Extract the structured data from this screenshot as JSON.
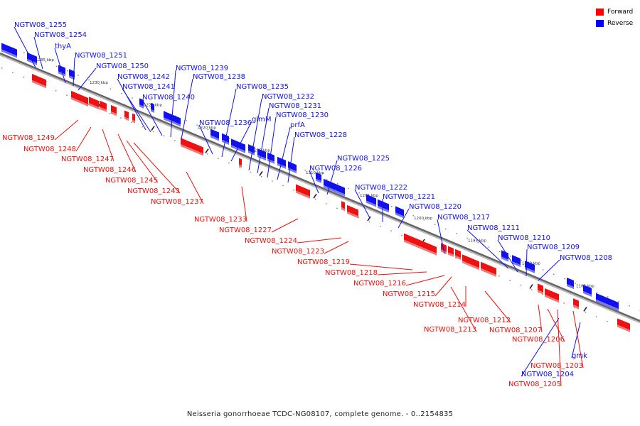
{
  "legend": {
    "items": [
      {
        "label": "Forward",
        "color": "#ff0000"
      },
      {
        "label": "Reverse",
        "color": "#0000ff"
      }
    ]
  },
  "caption": "Neisseria gonorrhoeae TCDC-NG08107, complete genome. - 0..2154835",
  "colors": {
    "forward": "#ee1111",
    "reverse": "#1111ee",
    "axis": "#666666"
  },
  "ticks": [
    {
      "label": "1235 kbp",
      "kbp": 1235
    },
    {
      "label": "1230 kbp",
      "kbp": 1230
    },
    {
      "label": "1225 kbp",
      "kbp": 1225
    },
    {
      "label": "1220 kbp",
      "kbp": 1220
    },
    {
      "label": "1215 kbp",
      "kbp": 1215
    },
    {
      "label": "1210 kbp",
      "kbp": 1210
    },
    {
      "label": "1205 kbp",
      "kbp": 1205
    },
    {
      "label": "1200 kbp",
      "kbp": 1200
    },
    {
      "label": "1195 kbp",
      "kbp": 1195
    },
    {
      "label": "1190 kbp",
      "kbp": 1190
    },
    {
      "label": "1185 kbp",
      "kbp": 1185
    }
  ],
  "reverse_genes": [
    "NGTW08_1255",
    "NGTW08_1254",
    "thyA",
    "NGTW08_1251",
    "NGTW08_1250",
    "NGTW08_1242",
    "NGTW08_1241",
    "NGTW08_1240",
    "NGTW08_1239",
    "NGTW08_1238",
    "NGTW08_1236",
    "NGTW08_1235",
    "glmM",
    "NGTW08_1232",
    "NGTW08_1231",
    "NGTW08_1230",
    "prfA",
    "NGTW08_1228",
    "NGTW08_1226",
    "NGTW08_1225",
    "NGTW08_1222",
    "NGTW08_1221",
    "NGTW08_1220",
    "NGTW08_1217",
    "NGTW08_1211",
    "NGTW08_1210",
    "NGTW08_1209",
    "NGTW08_1208",
    "gmk",
    "NGTW08_1204"
  ],
  "forward_genes": [
    "NGTW08_1249",
    "NGTW08_1248",
    "NGTW08_1247",
    "NGTW08_1246",
    "NGTW08_1245",
    "NGTW08_1243",
    "NGTW08_1237",
    "NGTW08_1233",
    "NGTW08_1227",
    "NGTW08_1224",
    "NGTW08_1223",
    "NGTW08_1219",
    "NGTW08_1218",
    "NGTW08_1216",
    "NGTW08_1215",
    "NGTW08_1214",
    "NGTW08_1213",
    "NGTW08_1212",
    "NGTW08_1207",
    "NGTW08_1206",
    "NGTW08_1203",
    "NGTW08_1205"
  ]
}
